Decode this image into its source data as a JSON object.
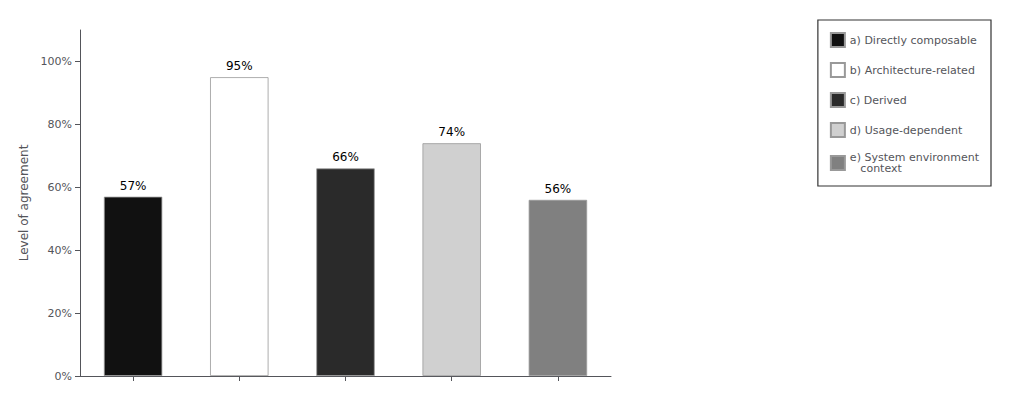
{
  "chart_data": {
    "type": "bar",
    "categories": [
      null,
      null,
      null,
      null,
      null
    ],
    "series": [
      {
        "name": "a) Directly composable",
        "color": "#111111",
        "values": [
          0.57,
          null,
          null,
          null,
          null
        ],
        "value_labels": [
          "57%",
          null,
          null,
          null,
          null
        ]
      },
      {
        "name": "b) Architecture-related",
        "color": "#ffffff",
        "values": [
          null,
          0.95,
          null,
          null,
          null
        ],
        "value_labels": [
          null,
          "95%",
          null,
          null,
          null
        ]
      },
      {
        "name": "c) Derived",
        "color": "#2a2a2a",
        "values": [
          null,
          null,
          0.66,
          null,
          null
        ],
        "value_labels": [
          null,
          null,
          "66%",
          null,
          null
        ]
      },
      {
        "name": "d) Usage-dependent",
        "color": "#d0d0d0",
        "values": [
          null,
          null,
          null,
          0.74,
          null
        ],
        "value_labels": [
          null,
          null,
          null,
          "74%",
          null
        ]
      },
      {
        "name": "e) System environment\n   context",
        "color": "#808080",
        "values": [
          null,
          null,
          null,
          null,
          0.56
        ],
        "value_labels": [
          null,
          null,
          null,
          null,
          "56%"
        ]
      }
    ],
    "ylabel": "Level of agreement",
    "ylim": [
      0,
      1.1
    ],
    "yticks": [
      {
        "value": 0.0,
        "label": "0%"
      },
      {
        "value": 0.2,
        "label": "20%"
      },
      {
        "value": 0.4,
        "label": "40%"
      },
      {
        "value": 0.6,
        "label": "60%"
      },
      {
        "value": 0.8,
        "label": "80%"
      },
      {
        "value": 1.0,
        "label": "100%"
      }
    ],
    "grid": false,
    "legend": "upper right",
    "data_labels": true
  }
}
